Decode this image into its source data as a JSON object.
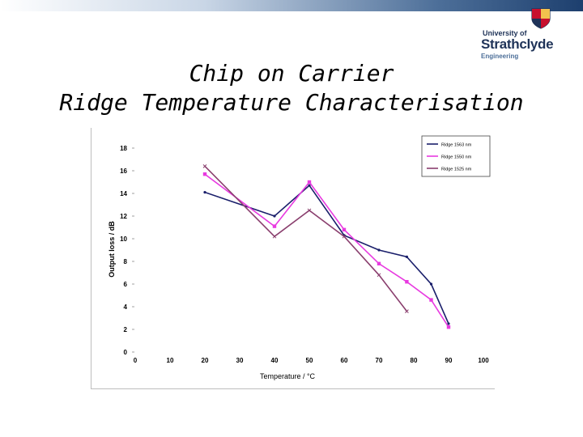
{
  "header": {
    "logo_line1": "University of",
    "logo_line2": "Strathclyde",
    "logo_line3": "Engineering"
  },
  "slide": {
    "title_line1": "Chip on Carrier",
    "title_line2": "Ridge Temperature Characterisation"
  },
  "colors": {
    "topbar_dark": "#1d3f6e",
    "logo_navy": "#1f3358"
  },
  "chart_data": {
    "type": "line",
    "xlabel": "Temperature / °C",
    "ylabel": "Output loss / dB",
    "xlim": [
      0,
      100
    ],
    "ylim": [
      0,
      18
    ],
    "xticks": [
      0,
      10,
      20,
      30,
      40,
      50,
      60,
      70,
      80,
      90,
      100
    ],
    "yticks": [
      0,
      2,
      4,
      6,
      8,
      10,
      12,
      14,
      16,
      18
    ],
    "grid": false,
    "legend_position": "top-right",
    "series": [
      {
        "name": "Ridge 1563 nm",
        "color": "#1a1f6b",
        "marker": "dot",
        "x": [
          20,
          40,
          50,
          60,
          70,
          78,
          85,
          90
        ],
        "y": [
          14.1,
          12.0,
          14.7,
          10.3,
          9.0,
          8.4,
          6.0,
          2.5
        ]
      },
      {
        "name": "Ridge 1550 nm",
        "color": "#e83ae0",
        "marker": "square",
        "x": [
          20,
          40,
          50,
          60,
          70,
          78,
          85,
          90
        ],
        "y": [
          15.7,
          11.1,
          15.0,
          10.8,
          7.8,
          6.2,
          4.6,
          2.2
        ]
      },
      {
        "name": "Ridge 1525 nm",
        "color": "#8a3f6e",
        "marker": "cross",
        "x": [
          20,
          40,
          50,
          60,
          70,
          78
        ],
        "y": [
          16.4,
          10.2,
          12.5,
          10.2,
          6.8,
          3.6
        ]
      }
    ]
  }
}
